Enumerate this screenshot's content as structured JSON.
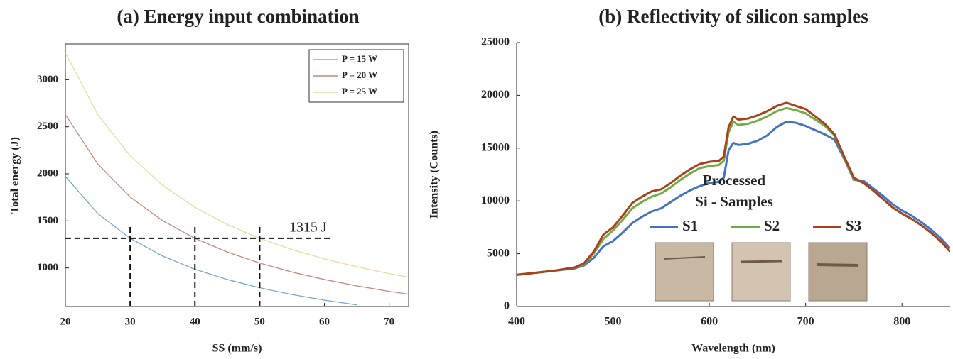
{
  "chart_data": [
    {
      "type": "line",
      "title": "(a) Energy input combination",
      "x_label": "SS (mm/s)",
      "y_label": "Total energy (J)",
      "x": [
        20,
        25,
        30,
        35,
        40,
        45,
        50,
        55,
        60,
        65,
        70,
        73
      ],
      "series": [
        {
          "name": "P = 15 W",
          "color": "#7ba7cf",
          "values": [
            1973,
            1578,
            1315,
            1127,
            986,
            877,
            789,
            717,
            658,
            607,
            null,
            null
          ]
        },
        {
          "name": "P = 20 W",
          "color": "#c58a7a",
          "values": [
            2630,
            2104,
            1753,
            1503,
            1315,
            1169,
            1052,
            956,
            877,
            809,
            751,
            721
          ]
        },
        {
          "name": "P = 25 W",
          "color": "#ecd9a0",
          "values": [
            3288,
            2630,
            2192,
            1879,
            1644,
            1461,
            1315,
            1195,
            1096,
            1012,
            939,
            901
          ]
        }
      ],
      "xlim": [
        20,
        73
      ],
      "ylim": [
        590,
        3380
      ],
      "xticks": [
        20,
        30,
        40,
        50,
        60,
        70
      ],
      "yticks": [
        1000,
        1500,
        2000,
        2500,
        3000
      ],
      "legend": "upper right",
      "reference_lines": {
        "y": 1315,
        "x": [
          30,
          40,
          50
        ],
        "x_end": 61,
        "label": "1315 J"
      }
    },
    {
      "type": "line",
      "title": "(b) Reflectivity of silicon samples",
      "x_label": "Wavelength (nm)",
      "y_label": "Intensity (Counts)",
      "x": [
        400,
        420,
        440,
        460,
        470,
        480,
        490,
        500,
        510,
        520,
        530,
        540,
        550,
        560,
        570,
        580,
        590,
        600,
        610,
        615,
        620,
        625,
        630,
        640,
        650,
        660,
        670,
        680,
        690,
        700,
        710,
        720,
        730,
        740,
        750,
        760,
        770,
        780,
        790,
        800,
        810,
        820,
        830,
        840,
        850
      ],
      "series": [
        {
          "name": "S1",
          "color": "#4472c4",
          "values": [
            3000,
            3200,
            3400,
            3600,
            3900,
            4600,
            5700,
            6200,
            7000,
            7900,
            8500,
            9000,
            9300,
            9900,
            10500,
            11000,
            11400,
            11700,
            11800,
            12200,
            14800,
            15500,
            15300,
            15400,
            15700,
            16200,
            17000,
            17500,
            17400,
            17100,
            16700,
            16300,
            15800,
            14000,
            12000,
            11900,
            11200,
            10500,
            9700,
            9100,
            8600,
            8000,
            7300,
            6500,
            5500
          ]
        },
        {
          "name": "S2",
          "color": "#70ad47",
          "values": [
            3000,
            3200,
            3400,
            3700,
            4000,
            5000,
            6400,
            7200,
            8200,
            9300,
            9900,
            10400,
            10700,
            11300,
            12000,
            12600,
            13100,
            13300,
            13400,
            13800,
            16500,
            17500,
            17200,
            17300,
            17600,
            18000,
            18500,
            18800,
            18600,
            18300,
            17700,
            17100,
            16200,
            14100,
            12100,
            11700,
            11000,
            10200,
            9400,
            8800,
            8300,
            7700,
            7000,
            6200,
            5200
          ]
        },
        {
          "name": "S3",
          "color": "#a9411b",
          "values": [
            3000,
            3200,
            3400,
            3700,
            4100,
            5200,
            6800,
            7500,
            8600,
            9800,
            10400,
            10900,
            11100,
            11700,
            12400,
            13000,
            13500,
            13700,
            13800,
            14200,
            17000,
            18000,
            17700,
            17800,
            18100,
            18500,
            19000,
            19300,
            19000,
            18700,
            18000,
            17300,
            16300,
            14200,
            12200,
            11700,
            11000,
            10200,
            9400,
            8800,
            8300,
            7700,
            7000,
            6200,
            5200
          ]
        }
      ],
      "xlim": [
        400,
        850
      ],
      "ylim": [
        0,
        25000
      ],
      "xticks": [
        400,
        500,
        600,
        700,
        800
      ],
      "yticks": [
        0,
        5000,
        10000,
        15000,
        20000,
        25000
      ],
      "legend": "center",
      "annotations": [
        "Processed",
        "Si - Samples"
      ]
    }
  ]
}
